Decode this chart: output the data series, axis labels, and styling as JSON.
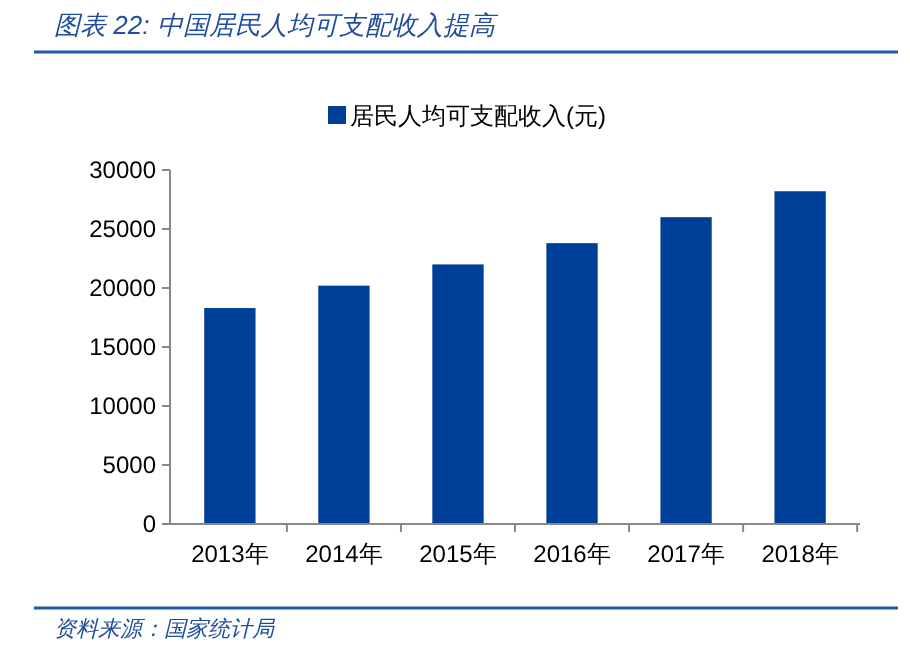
{
  "chart_data": {
    "type": "bar",
    "title": "图表 22:  中国居民人均可支配收入提高",
    "categories": [
      "2013年",
      "2014年",
      "2015年",
      "2016年",
      "2017年",
      "2018年"
    ],
    "series": [
      {
        "name": "居民人均可支配收入(元)",
        "color": "#003f97",
        "values": [
          18300,
          20200,
          22000,
          23800,
          26000,
          28200
        ]
      }
    ],
    "ylim": [
      0,
      30000
    ],
    "yticks": [
      0,
      5000,
      10000,
      15000,
      20000,
      25000,
      30000
    ],
    "grid": false,
    "legend": "top",
    "annotations": [
      "资料来源：国家统计局"
    ]
  }
}
